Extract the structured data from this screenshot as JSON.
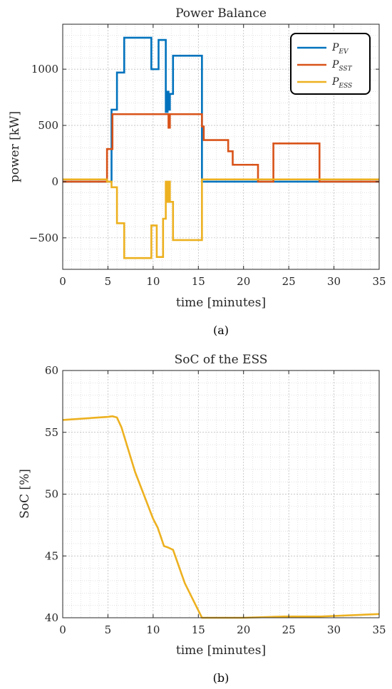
{
  "chart_data": [
    {
      "type": "line",
      "title": "Power Balance",
      "xlabel": "time [minutes]",
      "ylabel": "power [kW]",
      "xlim": [
        0,
        35
      ],
      "ylim": [
        -780,
        1400
      ],
      "xticks": [
        0,
        5,
        10,
        15,
        20,
        25,
        30,
        35
      ],
      "yticks": [
        -500,
        0,
        500,
        1000
      ],
      "ytick_labels": [
        "−500",
        "0",
        "500",
        "1000"
      ],
      "grid": true,
      "minor_grid": true,
      "legend_position": "top-right",
      "caption": "(a)",
      "series": [
        {
          "name": "P",
          "subscript": "EV",
          "color": "#0072BD",
          "x": [
            0,
            5.4,
            5.4,
            6.0,
            6.0,
            6.8,
            6.8,
            9.8,
            9.8,
            10.4,
            10.4,
            10.6,
            10.6,
            11.4,
            11.4,
            11.6,
            11.6,
            11.7,
            11.7,
            11.85,
            11.85,
            12.0,
            12.0,
            12.2,
            12.2,
            15.4,
            15.4,
            35
          ],
          "y": [
            0,
            0,
            640,
            640,
            970,
            970,
            1280,
            1280,
            1000,
            1000,
            1000,
            1000,
            1260,
            1260,
            620,
            620,
            800,
            800,
            640,
            640,
            780,
            780,
            780,
            780,
            1120,
            1120,
            0,
            0
          ]
        },
        {
          "name": "P",
          "subscript": "SST",
          "color": "#D95319",
          "x": [
            0,
            4.9,
            4.9,
            5.5,
            5.5,
            11.7,
            11.7,
            11.85,
            11.85,
            15.4,
            15.4,
            15.6,
            15.6,
            18.3,
            18.3,
            18.8,
            18.8,
            21.6,
            21.6,
            23.3,
            23.3,
            28.4,
            28.4,
            35
          ],
          "y": [
            0,
            0,
            290,
            290,
            600,
            600,
            480,
            480,
            600,
            600,
            490,
            490,
            370,
            370,
            270,
            270,
            150,
            150,
            0,
            0,
            340,
            340,
            0,
            0
          ]
        },
        {
          "name": "P",
          "subscript": "ESS",
          "color": "#EDB120",
          "x": [
            0,
            4.9,
            4.9,
            5.4,
            5.4,
            6.0,
            6.0,
            6.8,
            6.8,
            9.8,
            9.8,
            10.4,
            10.4,
            11.1,
            11.1,
            11.4,
            11.4,
            11.55,
            11.55,
            11.7,
            11.7,
            11.85,
            11.85,
            12.2,
            12.2,
            15.4,
            15.4,
            35
          ],
          "y": [
            20,
            20,
            0,
            0,
            -50,
            -50,
            -370,
            -370,
            -680,
            -680,
            -390,
            -390,
            -670,
            -670,
            -330,
            -330,
            0,
            0,
            -180,
            -180,
            0,
            0,
            -180,
            -180,
            -520,
            -520,
            20,
            20
          ]
        }
      ]
    },
    {
      "type": "line",
      "title": "SoC of the ESS",
      "xlabel": "time [minutes]",
      "ylabel": "SoC [%]",
      "xlim": [
        0,
        35
      ],
      "ylim": [
        40,
        60
      ],
      "xticks": [
        0,
        5,
        10,
        15,
        20,
        25,
        30,
        35
      ],
      "yticks": [
        40,
        45,
        50,
        55,
        60
      ],
      "grid": true,
      "minor_grid": true,
      "caption": "(b)",
      "series": [
        {
          "color": "#EDB120",
          "x": [
            0,
            5.0,
            5.5,
            6.0,
            6.5,
            8.0,
            10.0,
            10.5,
            11.2,
            11.6,
            12.2,
            13.5,
            15.4,
            20.0,
            24.5,
            28.5,
            35.0
          ],
          "y": [
            56.0,
            56.25,
            56.3,
            56.2,
            55.4,
            51.8,
            48.0,
            47.3,
            45.8,
            45.7,
            45.5,
            42.8,
            40.0,
            40.0,
            40.1,
            40.1,
            40.3
          ]
        }
      ]
    }
  ]
}
